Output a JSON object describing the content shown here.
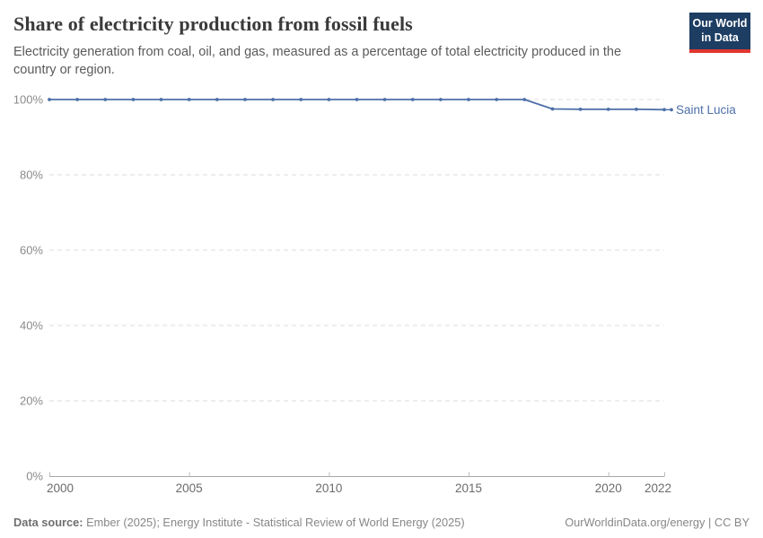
{
  "header": {
    "title": "Share of electricity production from fossil fuels",
    "subtitle": "Electricity generation from coal, oil, and gas, measured as a percentage of total electricity produced in the country or region.",
    "logo": {
      "line1": "Our World",
      "line2": "in Data",
      "bg_color": "#1d3d63",
      "bar_color": "#e0372e"
    }
  },
  "chart_data": {
    "type": "line",
    "title": "Share of electricity production from fossil fuels",
    "unit": "%",
    "x": [
      2000,
      2001,
      2002,
      2003,
      2004,
      2005,
      2006,
      2007,
      2008,
      2009,
      2010,
      2011,
      2012,
      2013,
      2014,
      2015,
      2016,
      2017,
      2018,
      2019,
      2020,
      2021,
      2022
    ],
    "series": [
      {
        "name": "Saint Lucia",
        "color": "#4d6fa8",
        "values": [
          100,
          100,
          100,
          100,
          100,
          100,
          100,
          100,
          100,
          100,
          100,
          100,
          100,
          100,
          100,
          100,
          100,
          100,
          97.5,
          97.4,
          97.4,
          97.4,
          97.3
        ]
      }
    ],
    "xlabel": "",
    "ylabel": "",
    "ylim": [
      0,
      100
    ],
    "xlim": [
      2000,
      2022
    ],
    "yticks": [
      0,
      20,
      40,
      60,
      80,
      100
    ],
    "ytick_labels": [
      "0%",
      "20%",
      "40%",
      "60%",
      "80%",
      "100%"
    ],
    "xticks": [
      2000,
      2005,
      2010,
      2015,
      2020,
      2022
    ],
    "xtick_labels": [
      "2000",
      "2005",
      "2010",
      "2015",
      "2020",
      "2022"
    ],
    "grid": "horizontal-dashed",
    "legend_position": "end-of-line-label",
    "colors": {
      "grid": "#dcdcdc",
      "axis": "#a6a6a6",
      "tick": "#bbbbbb",
      "ytick_text": "#8a8a8a",
      "xtick_text": "#6b6b6b"
    }
  },
  "footer": {
    "datasource_label": "Data source:",
    "datasource_text": " Ember (2025); Energy Institute - Statistical Review of World Energy (2025)",
    "right_text": "OurWorldinData.org/energy | CC BY"
  }
}
